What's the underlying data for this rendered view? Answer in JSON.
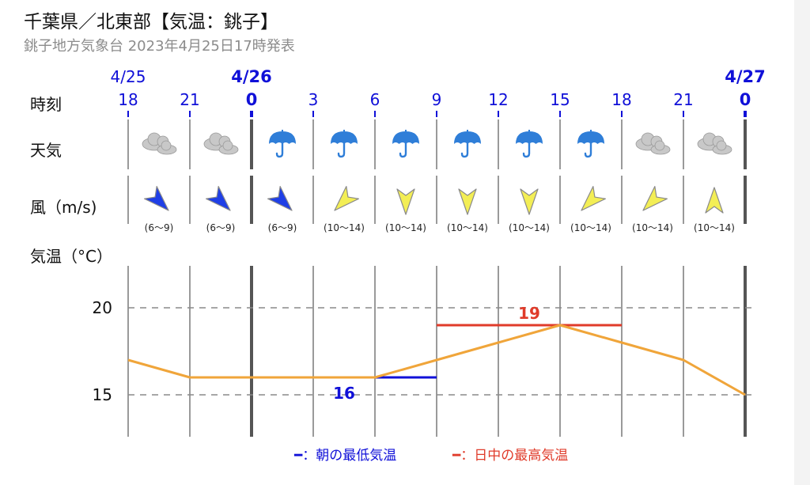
{
  "header": {
    "title": "千葉県／北東部【気温：銚子】",
    "subtitle": "銚子地方気象台 2023年4月25日17時発表"
  },
  "rows": {
    "time": "時刻",
    "weather": "天気",
    "wind": "風（m/s)",
    "temp": "気温（°C）"
  },
  "colors": {
    "accent": "#1010d8",
    "temp_line": "#f0a53a",
    "min_line": "#1010d8",
    "max_line": "#e03b2a",
    "wind_strong": "#1f3fe6",
    "wind_moderate": "#f3ee55",
    "umbrella": "#2f7ed8",
    "cloud": "#c8c8c8"
  },
  "timeline": {
    "dates": [
      {
        "label": "4/25",
        "index": 0,
        "bold": false
      },
      {
        "label": "4/26",
        "index": 2,
        "bold": true
      },
      {
        "label": "4/27",
        "index": 10,
        "bold": true
      }
    ],
    "hours": [
      {
        "label": "18",
        "bold": false
      },
      {
        "label": "21",
        "bold": false
      },
      {
        "label": "0",
        "bold": true
      },
      {
        "label": "3",
        "bold": false
      },
      {
        "label": "6",
        "bold": false
      },
      {
        "label": "9",
        "bold": false
      },
      {
        "label": "12",
        "bold": false
      },
      {
        "label": "15",
        "bold": false
      },
      {
        "label": "18",
        "bold": false
      },
      {
        "label": "21",
        "bold": false
      },
      {
        "label": "0",
        "bold": true
      }
    ]
  },
  "weather": [
    "cloudy-icon",
    "cloudy-icon",
    "umbrella-icon",
    "umbrella-icon",
    "umbrella-icon",
    "umbrella-icon",
    "umbrella-icon",
    "umbrella-icon",
    "cloudy-icon",
    "cloudy-icon"
  ],
  "wind": [
    {
      "dir": "NW",
      "speed": "(6〜9)",
      "level": "strong"
    },
    {
      "dir": "NW",
      "speed": "(6〜9)",
      "level": "strong"
    },
    {
      "dir": "NW",
      "speed": "(6〜9)",
      "level": "strong"
    },
    {
      "dir": "NE",
      "speed": "(10〜14)",
      "level": "moderate"
    },
    {
      "dir": "N",
      "speed": "(10〜14)",
      "level": "moderate"
    },
    {
      "dir": "N",
      "speed": "(10〜14)",
      "level": "moderate"
    },
    {
      "dir": "N",
      "speed": "(10〜14)",
      "level": "moderate"
    },
    {
      "dir": "NE",
      "speed": "(10〜14)",
      "level": "moderate"
    },
    {
      "dir": "NE",
      "speed": "(10〜14)",
      "level": "moderate"
    },
    {
      "dir": "S",
      "speed": "(10〜14)",
      "level": "moderate"
    }
  ],
  "chart_data": {
    "type": "line",
    "x": [
      "18",
      "21",
      "0",
      "3",
      "6",
      "9",
      "12",
      "15",
      "18",
      "21",
      "0"
    ],
    "series": [
      {
        "values": [
          17,
          16,
          16,
          16,
          16,
          17,
          18,
          19,
          18,
          17,
          15
        ]
      }
    ],
    "min_temp": {
      "value": 16,
      "label": "16",
      "from_index": 2,
      "to_index": 5
    },
    "max_temp": {
      "value": 19,
      "label": "19",
      "from_index": 5,
      "to_index": 8
    },
    "yticks": [
      {
        "value": 20,
        "label": "20"
      },
      {
        "value": 15,
        "label": "15"
      }
    ],
    "ylim": [
      12.6,
      22.5
    ],
    "grid": true,
    "legend": {
      "min": "━：朝の最低気温",
      "max": "━：日中の最高気温"
    }
  }
}
